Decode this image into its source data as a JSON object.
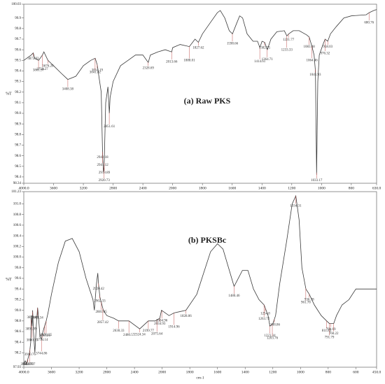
{
  "chart_data": [
    {
      "type": "line",
      "title": "(a) Raw PKS",
      "ylabel": "%T",
      "color": "#3a3a3a",
      "peak_color": "#c0504d",
      "xlim": [
        4000,
        630
      ],
      "ylim": [
        98.34,
        100.03
      ],
      "xticks": [
        {
          "value": 4000,
          "label": "4000.0"
        },
        3600,
        3200,
        2800,
        2400,
        2000,
        1800,
        1600,
        1400,
        1200,
        1000,
        800,
        {
          "value": 630,
          "label": "630.0"
        }
      ],
      "yticks": [
        100.03,
        99.9,
        99.8,
        99.7,
        99.6,
        99.5,
        99.4,
        99.3,
        99.2,
        99.1,
        {
          "value": 99,
          "label": "99.0"
        },
        98.9,
        98.8,
        98.7,
        98.6,
        98.5,
        98.4,
        98.34
      ],
      "x": [
        4000,
        3900,
        3873,
        3853,
        3801,
        3750,
        3730,
        3676,
        3600,
        3500,
        3408,
        3300,
        3200,
        3100,
        3041,
        3014,
        2960,
        2941,
        2930,
        2920,
        2900,
        2870,
        2851,
        2840,
        2800,
        2700,
        2600,
        2500,
        2400,
        2328,
        2300,
        2200,
        2100,
        2013,
        2000,
        1950,
        1888,
        1850,
        1827,
        1800,
        1750,
        1700,
        1680,
        1650,
        1620,
        1598,
        1570,
        1550,
        1530,
        1500,
        1460,
        1430,
        1414,
        1400,
        1382,
        1364,
        1340,
        1300,
        1250,
        1233,
        1220,
        1190,
        1150,
        1100,
        1083,
        1064,
        1050,
        1041,
        1033,
        1025,
        1015,
        990,
        976,
        958,
        940,
        900,
        850,
        800,
        700,
        680,
        650,
        630
      ],
      "values": [
        99.5,
        99.55,
        99.57,
        99.52,
        99.5,
        99.55,
        99.58,
        99.5,
        99.45,
        99.38,
        99.32,
        99.35,
        99.45,
        99.5,
        99.52,
        99.46,
        99.2,
        98.6,
        98.45,
        98.5,
        99.1,
        99.25,
        99.0,
        99.15,
        99.3,
        99.45,
        99.5,
        99.55,
        99.55,
        99.48,
        99.55,
        99.58,
        99.6,
        99.58,
        99.62,
        99.65,
        99.63,
        99.7,
        99.67,
        99.75,
        99.85,
        99.95,
        99.97,
        99.9,
        99.78,
        99.75,
        99.85,
        99.92,
        99.9,
        99.75,
        99.68,
        99.68,
        99.62,
        99.68,
        99.67,
        99.6,
        99.7,
        99.77,
        99.78,
        99.73,
        99.75,
        99.78,
        99.78,
        99.74,
        99.72,
        99.63,
        99.55,
        99.4,
        98.42,
        99.3,
        99.55,
        99.65,
        99.7,
        99.68,
        99.75,
        99.82,
        99.9,
        99.92,
        99.93,
        99.95,
        99.97,
        99.98
      ],
      "peak_labels": [
        3873.93,
        3801.97,
        3750.27,
        {
          "value": 3676.2,
          "label": "3676.20"
        },
        3408.38,
        3041.82,
        3014.19,
        2918.89,
        2851.61,
        2942.18,
        2941.12,
        2920.73,
        2328.69,
        2013.66,
        1888.01,
        1827.62,
        1598.66,
        1414.61,
        1382.75,
        1364.71,
        1233.33,
        1221.77,
        1083.08,
        1064.46,
        1041.93,
        1033.17,
        976.32,
        958.03,
        680.76
      ]
    },
    {
      "type": "line",
      "title": "(b) PKSBc",
      "ylabel": "%T",
      "xlabel": "cm-1",
      "color": "#3a3a3a",
      "peak_color": "#c0504d",
      "xlim": [
        4000,
        450
      ],
      "ylim": [
        97.93,
        101.23
      ],
      "xticks": [
        {
          "value": 4000,
          "label": "4000.0"
        },
        3600,
        3200,
        2800,
        2400,
        2000,
        1800,
        1600,
        1400,
        1200,
        1000,
        800,
        600,
        {
          "value": 450,
          "label": "450.0"
        }
      ],
      "yticks": [
        101.23,
        {
          "value": 101,
          "label": "101.0"
        },
        100.8,
        100.6,
        100.4,
        100.2,
        {
          "value": 100,
          "label": "100.0"
        },
        99.8,
        99.6,
        99.4,
        99.2,
        {
          "value": 99,
          "label": "99.0"
        },
        98.8,
        98.6,
        98.4,
        98.2,
        97.93
      ],
      "x": [
        4000,
        3980,
        3960,
        3917,
        3900,
        3893,
        3880,
        3873,
        3860,
        3840,
        3820,
        3801,
        3790,
        3765,
        3744,
        3734,
        3700,
        3676,
        3650,
        3600,
        3500,
        3400,
        3300,
        3200,
        3100,
        3000,
        2980,
        2950,
        2930,
        2920,
        2900,
        2850,
        2800,
        2700,
        2630,
        2480,
        2324,
        2200,
        2100,
        2034,
        2010,
        1950,
        1914,
        1828,
        1750,
        1700,
        1650,
        1600,
        1560,
        1520,
        1480,
        1460,
        1420,
        1380,
        1340,
        1300,
        1263,
        1234,
        1221,
        1200,
        1180,
        1150,
        1100,
        1060,
        1034,
        1010,
        990,
        961,
        936,
        900,
        850,
        811,
        791,
        760,
        740,
        700,
        650,
        600,
        450
      ],
      "values": [
        98.0,
        98.05,
        98.0,
        98.2,
        98.4,
        98.9,
        98.7,
        99.0,
        98.6,
        98.2,
        98.7,
        99.05,
        98.9,
        98.5,
        98.45,
        98.55,
        98.7,
        98.8,
        98.95,
        99.3,
        99.9,
        100.3,
        100.35,
        100.1,
        99.6,
        99.2,
        99.0,
        99.5,
        99.7,
        99.5,
        99.25,
        99.0,
        98.9,
        98.85,
        98.8,
        98.8,
        98.65,
        98.8,
        98.8,
        98.85,
        99.0,
        98.9,
        98.95,
        99.0,
        99.3,
        99.7,
        100.1,
        100.25,
        100.15,
        99.8,
        99.45,
        99.55,
        99.75,
        99.75,
        99.4,
        99.2,
        99.1,
        98.9,
        98.7,
        98.75,
        98.9,
        99.5,
        100.3,
        101.0,
        101.15,
        100.7,
        99.8,
        99.4,
        99.3,
        99.1,
        98.9,
        98.8,
        98.75,
        98.75,
        98.9,
        99.1,
        99.2,
        99.4,
        99.4
      ],
      "peak_labels": [
        3962.97,
        3942.77,
        3917.07,
        3910.76,
        3893.99,
        3880.15,
        3872.04,
        3801.34,
        3744.86,
        3734.14,
        3698.26,
        3676.55,
        2920.42,
        2881.05,
        2857.42,
        2902.33,
        2630.33,
        2480.57,
        2324.34,
        2199.77,
        2075.64,
        2034.93,
        2004.96,
        1914.96,
        1828.06,
        1480.46,
        1263.72,
        1254.8,
        1221.34,
        1203.76,
        1188.86,
        1034.31,
        961.78,
        936.78,
        811.85,
        791.79,
        780.69,
        760.22
      ]
    }
  ]
}
